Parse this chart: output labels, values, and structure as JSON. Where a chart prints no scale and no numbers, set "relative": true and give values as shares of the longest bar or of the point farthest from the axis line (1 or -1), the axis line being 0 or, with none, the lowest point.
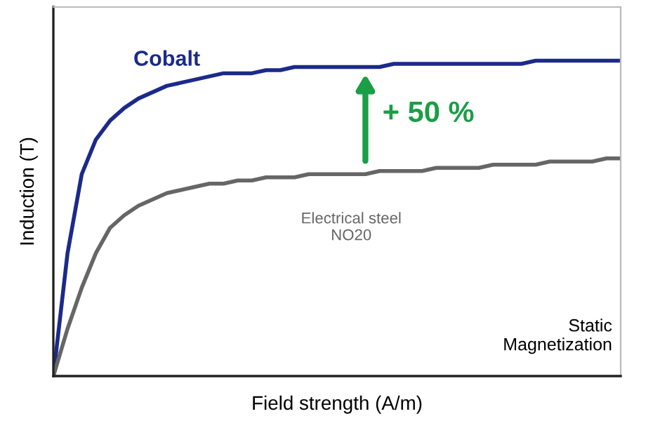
{
  "chart_data": {
    "type": "line",
    "relative": true,
    "xlabel": "Field strength (A/m)",
    "ylabel": "Induction (T)",
    "categories": [
      null,
      null,
      null,
      null,
      null,
      null,
      null,
      null,
      null,
      null,
      null,
      null,
      null,
      null,
      null,
      null,
      null,
      null,
      null,
      null,
      null,
      null,
      null,
      null,
      null,
      null,
      null,
      null,
      null,
      null,
      null,
      null,
      null,
      null,
      null,
      null,
      null,
      null,
      null,
      null,
      null
    ],
    "series": [
      {
        "name": "Cobalt",
        "color": "#1b2a8a",
        "values": [
          0,
          0.39,
          0.64,
          0.75,
          0.81,
          0.85,
          0.88,
          0.9,
          0.92,
          0.93,
          0.94,
          0.95,
          0.96,
          0.96,
          0.96,
          0.97,
          0.97,
          0.98,
          0.98,
          0.98,
          0.98,
          0.98,
          0.98,
          0.98,
          0.99,
          0.99,
          0.99,
          0.99,
          0.99,
          0.99,
          0.99,
          0.99,
          0.99,
          0.99,
          1.0,
          1.0,
          1.0,
          1.0,
          1.0,
          1.0,
          1.0
        ]
      },
      {
        "name": "Electrical steel\nNO20",
        "color": "#666666",
        "values": [
          0,
          0.15,
          0.28,
          0.39,
          0.47,
          0.51,
          0.54,
          0.56,
          0.58,
          0.59,
          0.6,
          0.61,
          0.61,
          0.62,
          0.62,
          0.63,
          0.63,
          0.63,
          0.64,
          0.64,
          0.64,
          0.64,
          0.64,
          0.65,
          0.65,
          0.65,
          0.65,
          0.66,
          0.66,
          0.66,
          0.66,
          0.67,
          0.67,
          0.67,
          0.67,
          0.68,
          0.68,
          0.68,
          0.68,
          0.69,
          0.69
        ]
      }
    ],
    "annotations": [
      "+ 50 %",
      "Static\nMagnetization"
    ],
    "marker": "none",
    "line_style": "solid",
    "legend": false
  }
}
